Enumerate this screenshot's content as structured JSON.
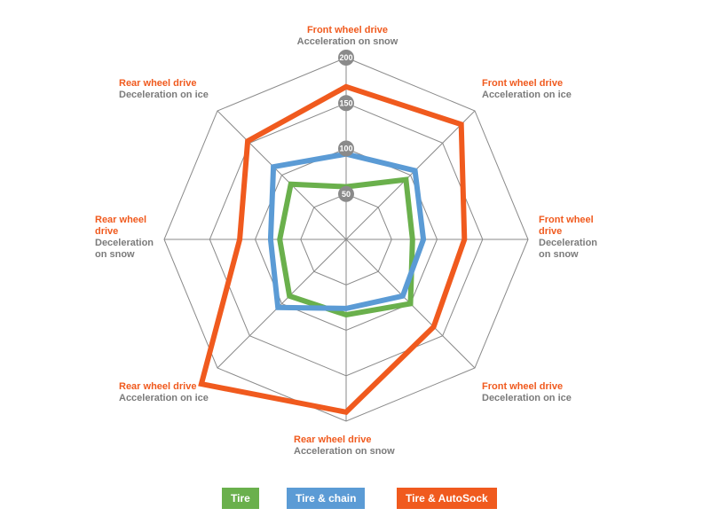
{
  "chart_data": {
    "type": "radar",
    "title": "",
    "axes": [
      {
        "l1": "Front wheel drive",
        "l2": "Acceleration on snow"
      },
      {
        "l1": "Front wheel drive",
        "l2": "Acceleration on ice"
      },
      {
        "l1": "Front wheel drive",
        "l2": "Deceleration on snow"
      },
      {
        "l1": "Front wheel drive",
        "l2": "Deceleration on ice"
      },
      {
        "l1": "Rear wheel drive",
        "l2": "Acceleration on snow"
      },
      {
        "l1": "Rear wheel drive",
        "l2": "Acceleration on ice"
      },
      {
        "l1": "Rear wheel drive",
        "l2": "Deceleration on snow"
      },
      {
        "l1": "Rear wheel drive",
        "l2": "Deceleration on ice"
      }
    ],
    "scale": {
      "min": 0,
      "max": 200,
      "rings": [
        50,
        100,
        150,
        200
      ],
      "tick_labels": [
        "50",
        "100",
        "150",
        "200"
      ]
    },
    "series": [
      {
        "name": "Tire",
        "color": "#6ab04c",
        "values": [
          58,
          93,
          73,
          100,
          83,
          88,
          73,
          86
        ]
      },
      {
        "name": "Tire & chain",
        "color": "#5b9bd5",
        "values": [
          94,
          107,
          85,
          88,
          76,
          106,
          83,
          113
        ]
      },
      {
        "name": "Tire & AutoSock",
        "color": "#f05a1e",
        "values": [
          168,
          179,
          130,
          136,
          190,
          225,
          117,
          153
        ]
      }
    ],
    "legend": "bottom-center"
  }
}
